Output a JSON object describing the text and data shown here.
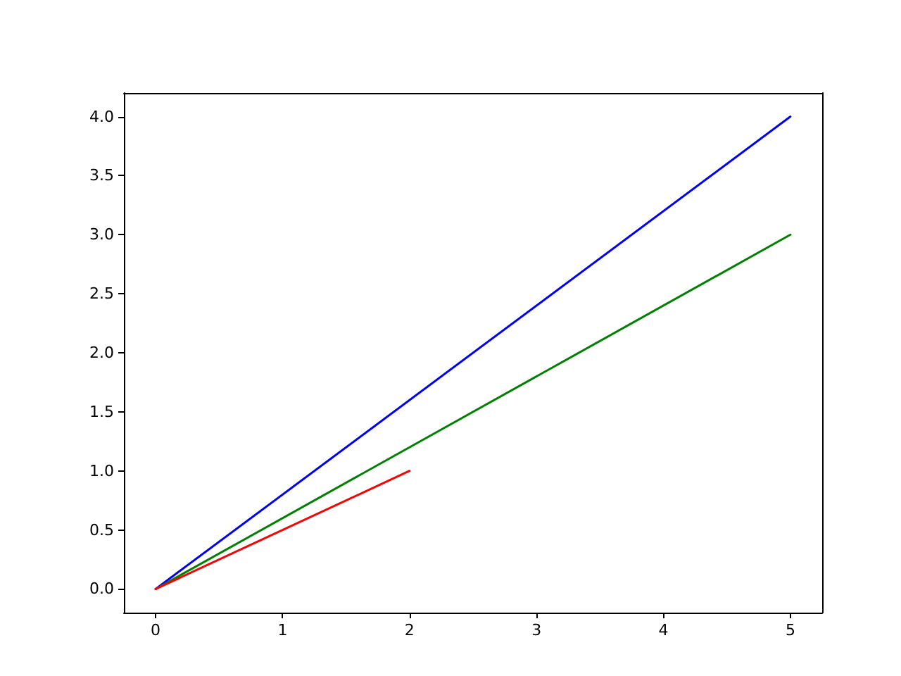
{
  "chart_data": {
    "type": "line",
    "xlim": [
      -0.25,
      5.25
    ],
    "ylim": [
      -0.2,
      4.2
    ],
    "xticks": [
      0,
      1,
      2,
      3,
      4,
      5
    ],
    "yticks": [
      {
        "value": 0,
        "label": "0.0"
      },
      {
        "value": 0.5,
        "label": "0.5"
      },
      {
        "value": 1,
        "label": "1.0"
      },
      {
        "value": 1.5,
        "label": "1.5"
      },
      {
        "value": 2,
        "label": "2.0"
      },
      {
        "value": 2.5,
        "label": "2.5"
      },
      {
        "value": 3,
        "label": "3.0"
      },
      {
        "value": 3.5,
        "label": "3.5"
      },
      {
        "value": 4,
        "label": "4.0"
      }
    ],
    "series": [
      {
        "color": "#0000ff",
        "x": [
          0,
          5
        ],
        "values": [
          0,
          4
        ]
      },
      {
        "color": "#008000",
        "x": [
          0,
          5
        ],
        "values": [
          0,
          3
        ]
      },
      {
        "color": "#ff0000",
        "x": [
          0,
          2
        ],
        "values": [
          0,
          1
        ]
      }
    ],
    "grid": false,
    "marker": "none",
    "line_style": "solid"
  }
}
